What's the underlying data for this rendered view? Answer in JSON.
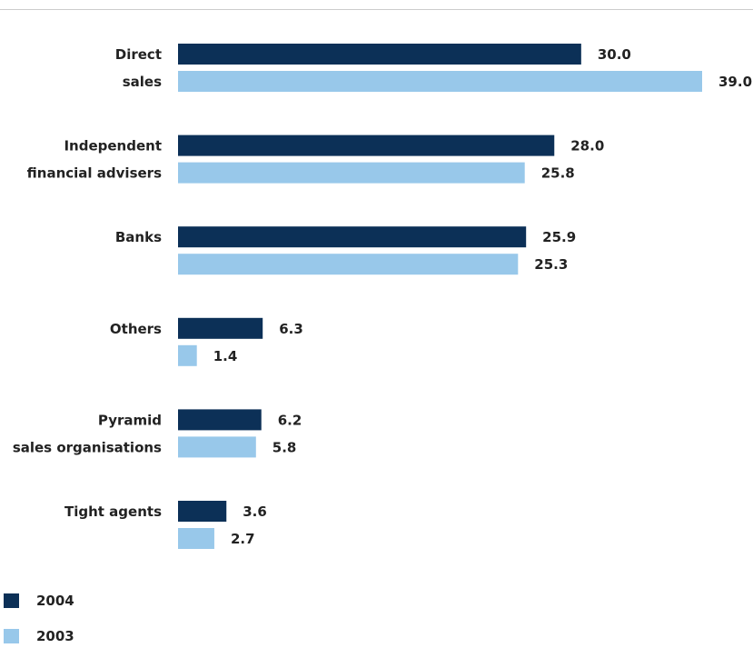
{
  "chart_data": {
    "type": "bar",
    "orientation": "horizontal",
    "categories": [
      [
        "Direct",
        "sales"
      ],
      [
        "Independent",
        "financial advisers"
      ],
      [
        "Banks"
      ],
      [
        "Others"
      ],
      [
        "Pyramid",
        "sales organisations"
      ],
      [
        "Tight agents"
      ]
    ],
    "series": [
      {
        "name": "2004",
        "color": "#0c3057",
        "values": [
          30.0,
          28.0,
          25.9,
          6.3,
          6.2,
          3.6
        ]
      },
      {
        "name": "2003",
        "color": "#98c8ea",
        "values": [
          39.0,
          25.8,
          25.3,
          1.4,
          5.8,
          2.7
        ]
      }
    ],
    "value_labels": [
      [
        "30.0",
        "28.0",
        "25.9",
        "6.3",
        "6.2",
        "3.6"
      ],
      [
        "39.0",
        "25.8",
        "25.3",
        "1.4",
        "5.8",
        "2.7"
      ]
    ],
    "xlim": [
      0,
      39.0
    ],
    "grid": false,
    "legend_position": "bottom-left",
    "rule_color": "#cccccc"
  }
}
